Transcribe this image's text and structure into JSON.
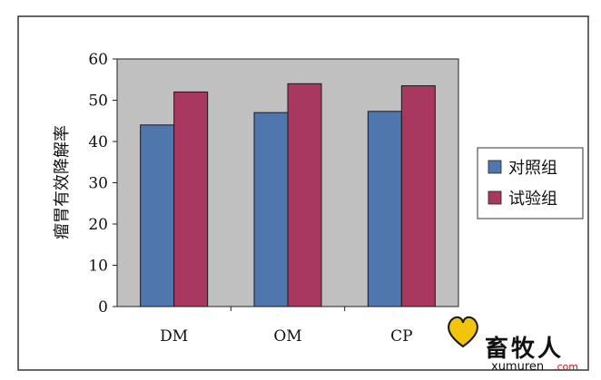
{
  "chart_data": {
    "type": "bar",
    "categories": [
      "DM",
      "OM",
      "CP"
    ],
    "series": [
      {
        "name": "对照组",
        "values": [
          44,
          47,
          47.3
        ],
        "color": "#4f76ad"
      },
      {
        "name": "试验组",
        "values": [
          52,
          54,
          53.5
        ],
        "color": "#a8385f"
      }
    ],
    "ylabel": "瘤胃有效降解率",
    "xlabel": "",
    "ylim": [
      0,
      60
    ],
    "yticks": [
      0,
      10,
      20,
      30,
      40,
      50,
      60
    ],
    "grid": false,
    "legend": "right",
    "plot_background": "#c0c0c0"
  },
  "watermark": {
    "text": "畜牧人",
    "site": "xumuren",
    "domain": ".com",
    "heart_color": "#f2c40c"
  }
}
